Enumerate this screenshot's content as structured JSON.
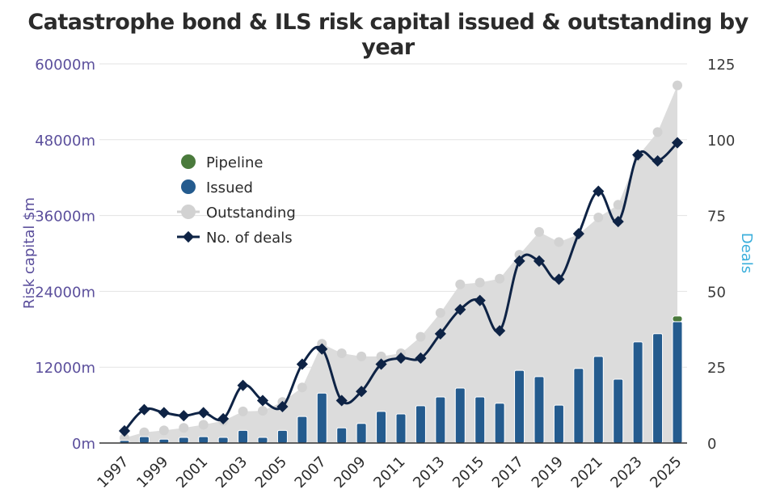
{
  "chart_data": {
    "type": "bar+line",
    "title": "Catastrophe bond & ILS risk capital issued & outstanding by year",
    "ylabel": "Risk capital $m",
    "y2label": "Deals",
    "ylim": [
      0,
      60000
    ],
    "y2lim": [
      0,
      125
    ],
    "yticks": [
      "0m",
      "12000m",
      "24000m",
      "36000m",
      "48000m",
      "60000m"
    ],
    "y2ticks": [
      "0",
      "25",
      "50",
      "75",
      "100",
      "125"
    ],
    "grid": true,
    "legend_position": "left-top",
    "categories": [
      1997,
      1998,
      1999,
      2000,
      2001,
      2002,
      2003,
      2004,
      2005,
      2006,
      2007,
      2008,
      2009,
      2010,
      2011,
      2012,
      2013,
      2014,
      2015,
      2016,
      2017,
      2018,
      2019,
      2020,
      2021,
      2022,
      2023,
      2024,
      2025
    ],
    "xtick_labels": [
      "1997",
      "1999",
      "2001",
      "2003",
      "2005",
      "2007",
      "2009",
      "2011",
      "2013",
      "2015",
      "2017",
      "2019",
      "2021",
      "2023",
      "2025"
    ],
    "series": [
      {
        "name": "Pipeline",
        "type": "bar",
        "axis": "left",
        "color": "#4a7a3c",
        "values": [
          0,
          0,
          0,
          0,
          0,
          0,
          0,
          0,
          0,
          0,
          0,
          0,
          0,
          0,
          0,
          0,
          0,
          0,
          0,
          0,
          0,
          0,
          0,
          0,
          0,
          0,
          0,
          0,
          900
        ]
      },
      {
        "name": "Issued",
        "type": "bar",
        "axis": "left",
        "color": "#245b8e",
        "values": [
          400,
          1000,
          600,
          900,
          1000,
          900,
          2000,
          900,
          2000,
          4200,
          7900,
          2400,
          3100,
          5000,
          4600,
          5900,
          7300,
          8700,
          7300,
          6300,
          11500,
          10500,
          6000,
          11800,
          13700,
          10100,
          16000,
          17300,
          19200
        ]
      },
      {
        "name": "Outstanding",
        "type": "area",
        "axis": "left",
        "color": "#dcdcdc",
        "values": [
          800,
          1700,
          2000,
          2400,
          2900,
          3500,
          5000,
          5100,
          6500,
          8800,
          15700,
          14200,
          13700,
          13700,
          14200,
          16800,
          20600,
          25100,
          25400,
          26000,
          29800,
          33400,
          31800,
          33000,
          35700,
          37700,
          45400,
          49200,
          56600
        ]
      },
      {
        "name": "No. of deals",
        "type": "line",
        "axis": "right",
        "color": "#0e2345",
        "values": [
          4,
          11,
          10,
          9,
          10,
          8,
          19,
          14,
          12,
          26,
          31,
          14,
          17,
          26,
          28,
          28,
          36,
          44,
          47,
          37,
          60,
          60,
          54,
          69,
          83,
          73,
          95,
          93,
          99
        ]
      }
    ]
  },
  "colors": {
    "left_axis": "#5b4f9c",
    "right_axis_title": "#3aaedb",
    "right_ticks": "#3a3a3a"
  }
}
